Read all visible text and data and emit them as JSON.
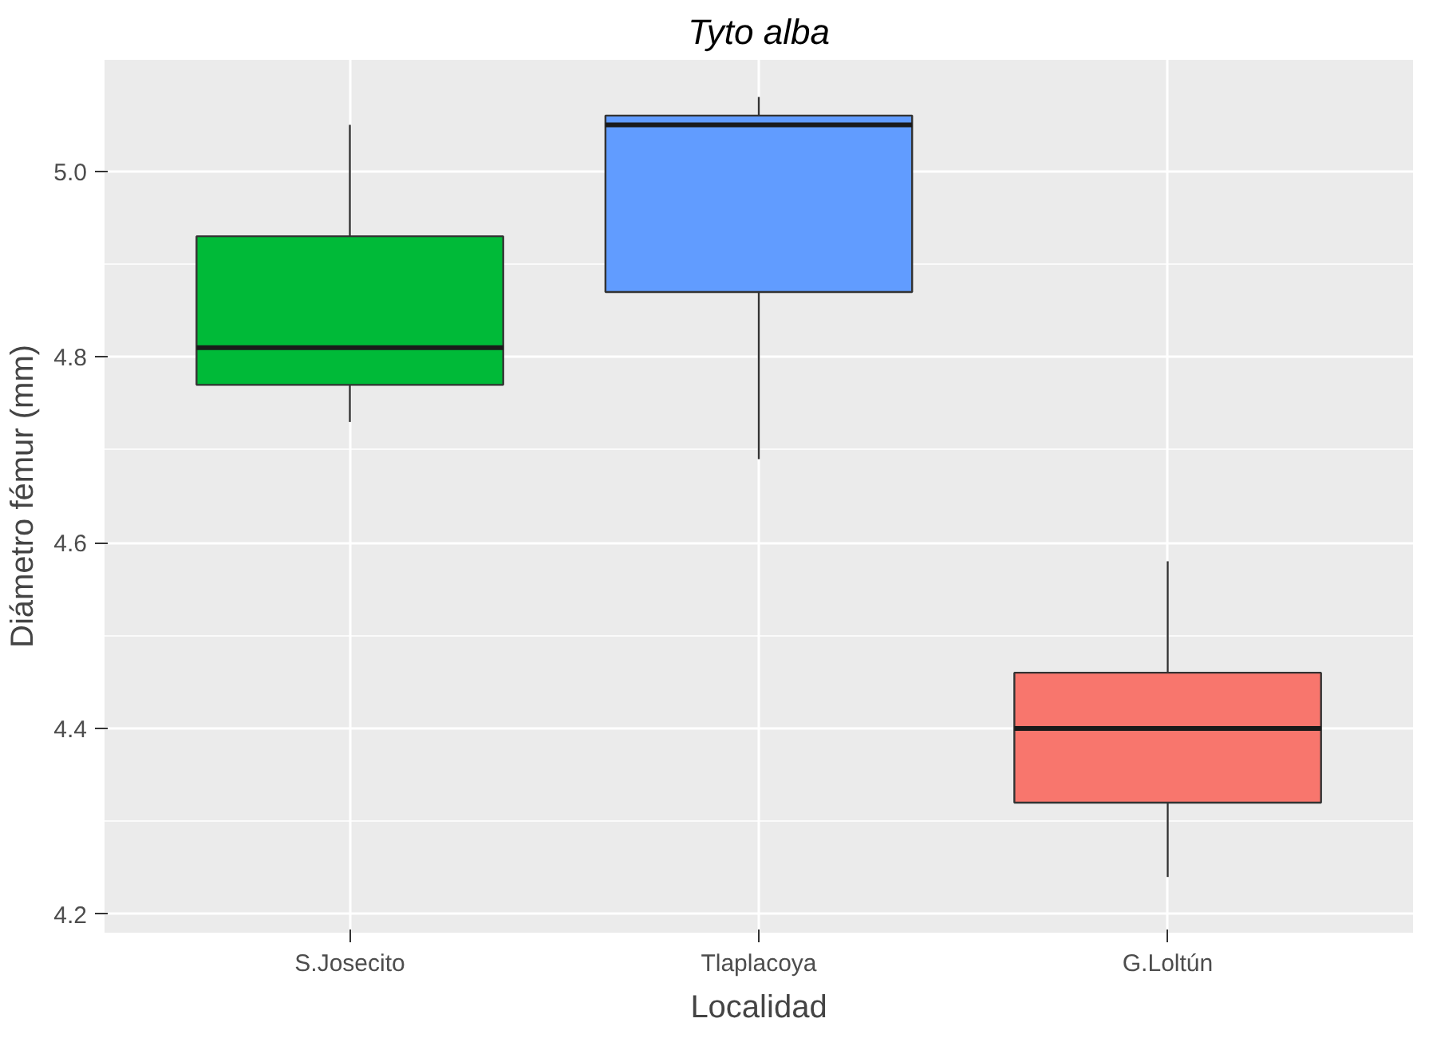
{
  "chart_data": {
    "type": "box",
    "title": "Tyto alba",
    "xlabel": "Localidad",
    "ylabel": "Diámetro fémur (mm)",
    "categories": [
      "S.Josecito",
      "Tlaplacoya",
      "G.Loltún"
    ],
    "boxes": [
      {
        "low": 4.73,
        "q1": 4.77,
        "median": 4.81,
        "q3": 4.93,
        "high": 5.05
      },
      {
        "low": 4.69,
        "q1": 4.87,
        "median": 5.05,
        "q3": 5.06,
        "high": 5.08
      },
      {
        "low": 4.24,
        "q1": 4.32,
        "median": 4.4,
        "q3": 4.46,
        "high": 4.58
      }
    ],
    "colors": [
      "#00ba38",
      "#619cff",
      "#f8766d"
    ],
    "ylim": [
      4.18,
      5.12
    ],
    "yticks": [
      4.2,
      4.4,
      4.6,
      4.8,
      {
        "value": 5,
        "label": "5.0"
      }
    ],
    "grid": true
  }
}
